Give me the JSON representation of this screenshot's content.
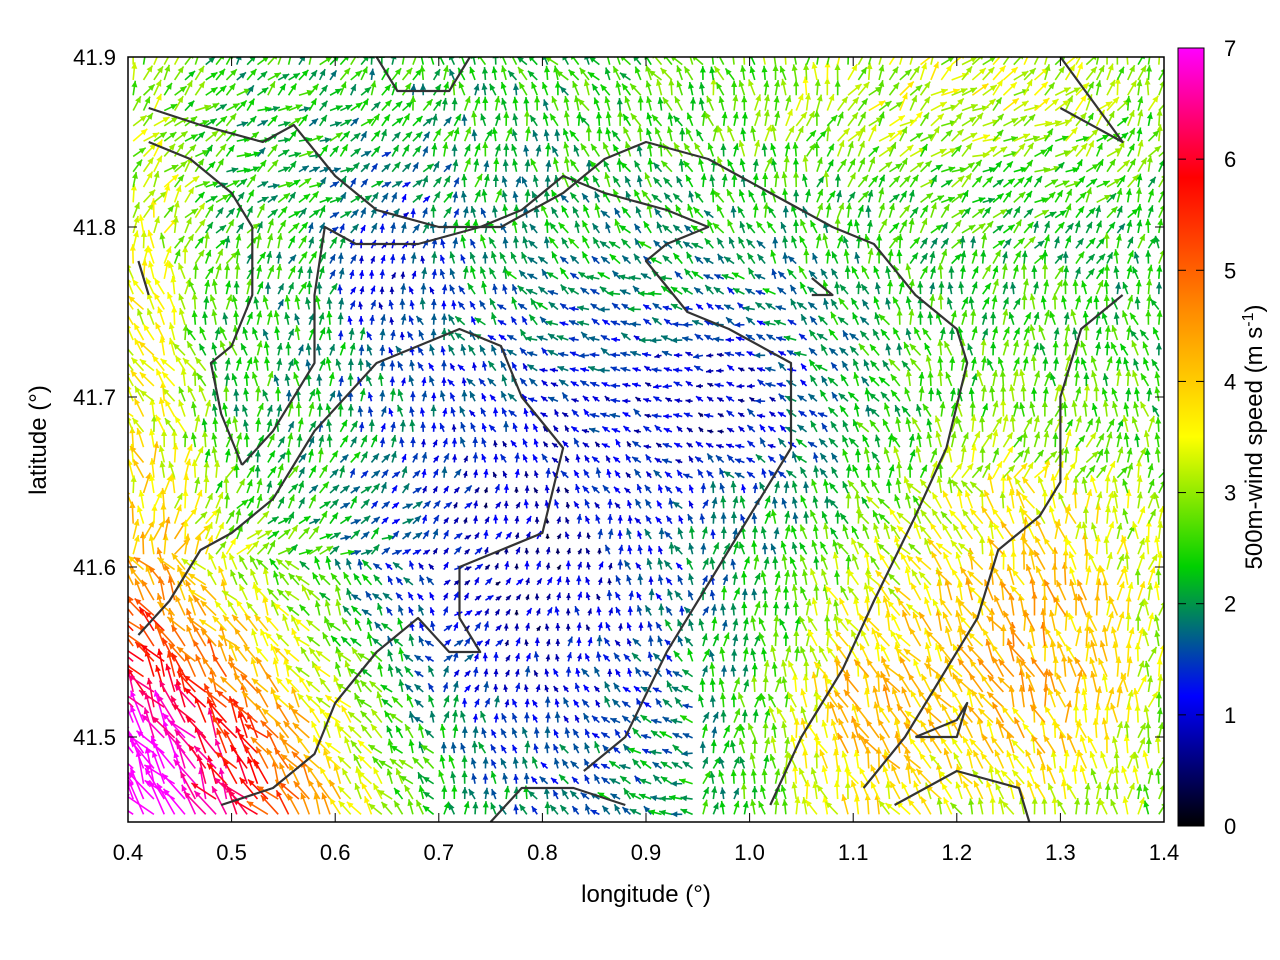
{
  "chart_data": {
    "type": "vector-field",
    "xlabel": "longitude (°)",
    "ylabel": "latitude (°)",
    "xlim": [
      0.4,
      1.4
    ],
    "ylim": [
      41.45,
      41.9
    ],
    "x_ticks": [
      "0.4",
      "0.5",
      "0.6",
      "0.7",
      "0.8",
      "0.9",
      "1.0",
      "1.1",
      "1.2",
      "1.3",
      "1.4"
    ],
    "y_ticks": [
      "41.5",
      "41.6",
      "41.7",
      "41.8",
      "41.9"
    ],
    "colorbar": {
      "label": "500m-wind speed (m s-1)",
      "label_main": "500m-wind speed (m s",
      "label_sup": "-1",
      "label_end": ")",
      "range": [
        0,
        7
      ],
      "ticks": [
        "0",
        "1",
        "2",
        "3",
        "4",
        "5",
        "6",
        "7"
      ],
      "palette": [
        "#000000",
        "#0000ff",
        "#00d000",
        "#ffff00",
        "#ff8800",
        "#ff0000",
        "#ff00ff"
      ]
    },
    "contour_color": "#333333",
    "grid": false,
    "arrow_spacing_deg": 0.01
  }
}
